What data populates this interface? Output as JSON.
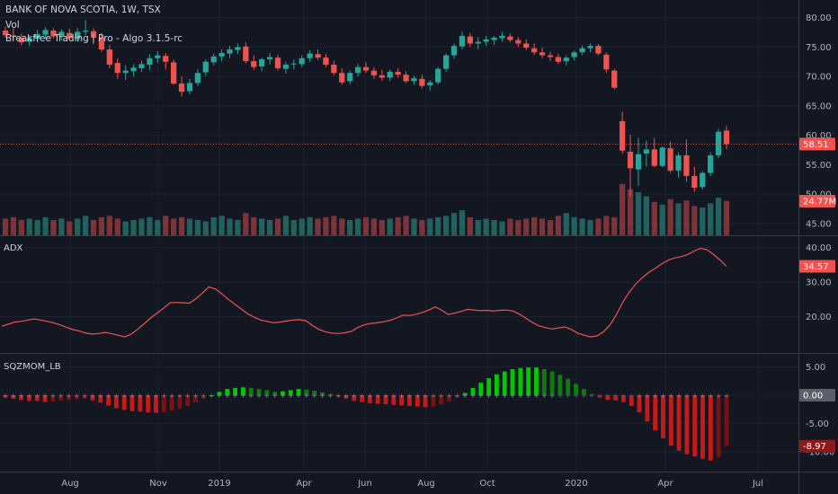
{
  "header": {
    "symbol_line": "BANK OF NOVA SCOTIA, 1W, TSX",
    "volume_label": "Vol",
    "indicator_label": "Breakfree Trading | Pro - Algo 3.1.5-rc"
  },
  "panes": {
    "adx_label": "ADX",
    "sqz_label": "SQZMOM_LB"
  },
  "badges": {
    "price": "58.51",
    "volume": "24.77M",
    "adx": "34.57",
    "sqz_zero": "0.00",
    "sqz_value": "-8.97"
  },
  "colors": {
    "bg": "#131722",
    "up": "#26a69a",
    "down": "#ef5350",
    "vol_up": "#22625e",
    "vol_down": "#7c3439",
    "adx_line": "#ef5350",
    "sqz_green": "#00c800",
    "sqz_red": "#c81919"
  },
  "chart_data": [
    {
      "type": "candlestick",
      "title": "BANK OF NOVA SCOTIA, 1W, TSX",
      "x_ticks": [
        "Aug",
        "Nov",
        "2019",
        "Apr",
        "Jun",
        "Aug",
        "Oct",
        "2020",
        "Apr",
        "Jul"
      ],
      "y_ticks": [
        "80.00",
        "75.00",
        "70.00",
        "65.00",
        "60.00",
        "55.00",
        "50.00",
        "45.00"
      ],
      "ylim": [
        43,
        83
      ],
      "last_price": 58.51,
      "ohlc": [
        [
          77.8,
          78.5,
          76.6,
          77.0
        ],
        [
          77.0,
          78.2,
          76.2,
          76.8
        ],
        [
          76.6,
          77.3,
          75.3,
          75.8
        ],
        [
          75.9,
          77.0,
          75.2,
          76.5
        ],
        [
          76.4,
          77.9,
          75.8,
          77.2
        ],
        [
          77.1,
          78.4,
          76.4,
          77.9
        ],
        [
          77.8,
          78.2,
          76.5,
          76.8
        ],
        [
          76.8,
          78.0,
          76.1,
          77.6
        ],
        [
          77.4,
          78.1,
          76.2,
          76.5
        ],
        [
          76.4,
          78.2,
          75.9,
          77.6
        ],
        [
          77.6,
          79.6,
          77.0,
          77.8
        ],
        [
          77.7,
          78.2,
          75.9,
          76.6
        ],
        [
          76.6,
          77.4,
          74.2,
          74.6
        ],
        [
          74.6,
          75.4,
          71.4,
          72.0
        ],
        [
          72.3,
          73.1,
          69.6,
          70.6
        ],
        [
          70.6,
          71.9,
          69.4,
          71.0
        ],
        [
          70.9,
          72.1,
          70.0,
          71.5
        ],
        [
          71.4,
          72.7,
          70.8,
          72.1
        ],
        [
          72.0,
          73.8,
          71.1,
          73.1
        ],
        [
          73.1,
          74.3,
          72.3,
          73.6
        ],
        [
          73.5,
          74.0,
          71.2,
          72.5
        ],
        [
          72.4,
          72.9,
          68.6,
          68.8
        ],
        [
          68.8,
          70.0,
          66.6,
          67.4
        ],
        [
          67.5,
          69.6,
          67.0,
          68.9
        ],
        [
          68.9,
          71.3,
          68.4,
          70.6
        ],
        [
          70.7,
          72.9,
          70.1,
          72.5
        ],
        [
          72.4,
          73.9,
          71.9,
          73.4
        ],
        [
          73.4,
          74.6,
          72.6,
          74.0
        ],
        [
          73.9,
          75.2,
          73.1,
          74.6
        ],
        [
          74.5,
          75.6,
          73.8,
          75.0
        ],
        [
          75.1,
          75.8,
          72.2,
          72.6
        ],
        [
          72.6,
          73.6,
          71.1,
          71.6
        ],
        [
          71.7,
          73.2,
          70.9,
          72.9
        ],
        [
          72.9,
          74.0,
          72.0,
          73.3
        ],
        [
          73.2,
          73.7,
          71.0,
          71.4
        ],
        [
          71.3,
          72.5,
          70.5,
          72.0
        ],
        [
          72.1,
          72.9,
          71.2,
          72.2
        ],
        [
          72.1,
          73.6,
          71.6,
          73.1
        ],
        [
          73.1,
          74.5,
          72.5,
          73.9
        ],
        [
          73.8,
          74.6,
          72.8,
          73.2
        ],
        [
          73.2,
          73.9,
          71.6,
          72.0
        ],
        [
          72.0,
          72.7,
          70.2,
          70.6
        ],
        [
          70.6,
          71.4,
          68.6,
          69.0
        ],
        [
          69.2,
          71.0,
          68.7,
          70.6
        ],
        [
          70.6,
          72.1,
          70.0,
          71.6
        ],
        [
          71.6,
          72.4,
          70.6,
          71.0
        ],
        [
          71.0,
          71.6,
          69.6,
          70.2
        ],
        [
          70.2,
          71.1,
          69.3,
          69.8
        ],
        [
          69.8,
          71.2,
          69.2,
          70.8
        ],
        [
          70.8,
          71.4,
          69.8,
          70.3
        ],
        [
          70.3,
          70.9,
          68.9,
          69.2
        ],
        [
          69.2,
          70.1,
          68.6,
          69.7
        ],
        [
          69.6,
          70.3,
          68.0,
          68.4
        ],
        [
          68.5,
          69.4,
          67.6,
          69.0
        ],
        [
          69.0,
          71.6,
          68.6,
          71.3
        ],
        [
          71.3,
          73.9,
          70.8,
          73.6
        ],
        [
          73.6,
          75.6,
          73.0,
          75.2
        ],
        [
          75.1,
          77.6,
          74.6,
          76.9
        ],
        [
          76.8,
          77.4,
          75.0,
          75.6
        ],
        [
          75.6,
          76.7,
          74.6,
          75.9
        ],
        [
          75.9,
          76.9,
          75.2,
          76.3
        ],
        [
          76.2,
          76.9,
          75.4,
          76.6
        ],
        [
          76.5,
          77.6,
          75.9,
          76.9
        ],
        [
          76.8,
          77.3,
          75.8,
          76.2
        ],
        [
          76.2,
          76.7,
          75.0,
          75.6
        ],
        [
          75.6,
          76.3,
          74.5,
          74.9
        ],
        [
          74.8,
          75.6,
          73.6,
          74.1
        ],
        [
          74.1,
          74.9,
          73.1,
          73.6
        ],
        [
          73.6,
          74.2,
          72.6,
          73.3
        ],
        [
          73.3,
          73.9,
          72.1,
          72.5
        ],
        [
          72.6,
          73.6,
          71.9,
          73.2
        ],
        [
          73.3,
          74.4,
          72.7,
          74.1
        ],
        [
          74.1,
          75.3,
          73.6,
          74.8
        ],
        [
          74.8,
          75.6,
          74.1,
          75.2
        ],
        [
          75.2,
          75.5,
          73.6,
          73.9
        ],
        [
          73.7,
          74.1,
          70.6,
          71.2
        ],
        [
          71.0,
          71.3,
          67.8,
          68.1
        ],
        [
          62.4,
          64.0,
          56.9,
          57.4
        ],
        [
          57.2,
          60.1,
          49.6,
          54.4
        ],
        [
          54.2,
          59.6,
          51.4,
          56.8
        ],
        [
          56.9,
          59.1,
          54.7,
          57.6
        ],
        [
          57.6,
          59.6,
          54.6,
          54.8
        ],
        [
          54.8,
          58.1,
          54.6,
          57.9
        ],
        [
          57.8,
          58.9,
          53.6,
          54.0
        ],
        [
          54.0,
          57.1,
          52.8,
          56.6
        ],
        [
          56.6,
          59.3,
          52.1,
          53.1
        ],
        [
          53.1,
          54.6,
          50.4,
          51.1
        ],
        [
          51.2,
          53.9,
          50.8,
          53.6
        ],
        [
          53.6,
          57.1,
          53.1,
          56.6
        ],
        [
          56.6,
          61.1,
          56.1,
          60.6
        ],
        [
          60.8,
          61.6,
          57.6,
          58.5
        ]
      ],
      "volume_m": [
        12,
        13,
        11,
        12,
        11,
        13,
        11,
        12,
        10,
        12,
        14,
        11,
        13,
        14,
        12,
        10,
        11,
        12,
        13,
        11,
        14,
        12,
        13,
        12,
        11,
        10,
        13,
        14,
        12,
        11,
        16,
        13,
        12,
        11,
        12,
        14,
        11,
        12,
        13,
        12,
        13,
        14,
        12,
        11,
        12,
        13,
        12,
        11,
        12,
        13,
        14,
        12,
        11,
        12,
        13,
        14,
        16,
        18,
        13,
        11,
        12,
        11,
        10,
        12,
        11,
        12,
        13,
        12,
        11,
        14,
        16,
        13,
        12,
        11,
        12,
        14,
        13,
        37,
        33,
        31,
        28,
        24,
        22,
        26,
        23,
        25,
        21,
        20,
        23,
        27,
        24.77
      ]
    },
    {
      "type": "line",
      "name": "ADX",
      "y_ticks": [
        "40.00",
        "30.00",
        "20.00"
      ],
      "ylim": [
        11,
        42
      ],
      "last_value": 34.57,
      "values": [
        17.2,
        17.8,
        18.4,
        18.6,
        19.0,
        19.3,
        19.0,
        18.6,
        18.2,
        17.6,
        16.9,
        16.2,
        15.8,
        15.2,
        14.9,
        15.1,
        15.4,
        15.0,
        14.6,
        14.1,
        14.9,
        16.3,
        17.9,
        19.6,
        21.0,
        22.4,
        24.0,
        24.1,
        24.0,
        23.9,
        25.2,
        26.8,
        28.6,
        28.0,
        26.6,
        25.0,
        23.6,
        22.2,
        20.8,
        19.8,
        19.0,
        18.6,
        18.2,
        18.4,
        18.7,
        19.0,
        19.1,
        18.8,
        17.4,
        16.3,
        15.6,
        15.2,
        15.1,
        15.3,
        15.7,
        16.8,
        17.6,
        18.0,
        18.2,
        18.5,
        18.9,
        19.6,
        20.4,
        20.3,
        20.6,
        21.2,
        21.9,
        22.8,
        21.8,
        20.6,
        21.0,
        21.5,
        22.1,
        21.9,
        21.7,
        21.8,
        21.6,
        21.8,
        21.9,
        21.6,
        20.7,
        19.5,
        18.3,
        17.3,
        16.8,
        16.4,
        16.7,
        17.0,
        16.3,
        15.2,
        14.6,
        14.1,
        14.4,
        15.6,
        17.6,
        20.6,
        24.3,
        27.2,
        29.5,
        31.3,
        32.8,
        34.0,
        35.3,
        36.4,
        37.0,
        37.4,
        38.0,
        39.0,
        39.8,
        39.4,
        38.0,
        36.4,
        34.57
      ]
    },
    {
      "type": "bar",
      "name": "SQZMOM_LB",
      "y_ticks": [
        "5.00",
        "0.00",
        "-5.00",
        "-10.00"
      ],
      "ylim": [
        -12.5,
        6.5
      ],
      "last_value": -8.97,
      "values": [
        -0.4,
        -0.6,
        -0.8,
        -1.0,
        -1.0,
        -1.2,
        -1.1,
        -0.9,
        -0.8,
        -0.7,
        -0.6,
        -0.9,
        -1.3,
        -1.8,
        -2.3,
        -2.6,
        -2.8,
        -2.9,
        -3.0,
        -3.1,
        -3.0,
        -2.7,
        -2.4,
        -1.9,
        -1.3,
        -0.6,
        0.0,
        0.6,
        1.1,
        1.3,
        1.4,
        1.3,
        1.1,
        0.9,
        0.6,
        0.7,
        0.9,
        1.1,
        1.0,
        0.8,
        0.5,
        0.2,
        -0.2,
        -0.6,
        -1.0,
        -1.2,
        -1.4,
        -1.5,
        -1.6,
        -1.7,
        -1.8,
        -1.9,
        -2.0,
        -2.1,
        -2.0,
        -1.6,
        -1.1,
        -0.4,
        0.4,
        1.3,
        2.2,
        3.0,
        3.7,
        4.2,
        4.6,
        4.8,
        4.9,
        4.9,
        4.6,
        4.2,
        3.6,
        2.9,
        2.0,
        1.1,
        0.2,
        -0.4,
        -0.8,
        -0.9,
        -1.2,
        -1.9,
        -3.0,
        -4.6,
        -6.2,
        -7.6,
        -8.9,
        -9.8,
        -10.4,
        -10.8,
        -11.2,
        -11.5,
        -10.9,
        -8.97
      ]
    }
  ]
}
